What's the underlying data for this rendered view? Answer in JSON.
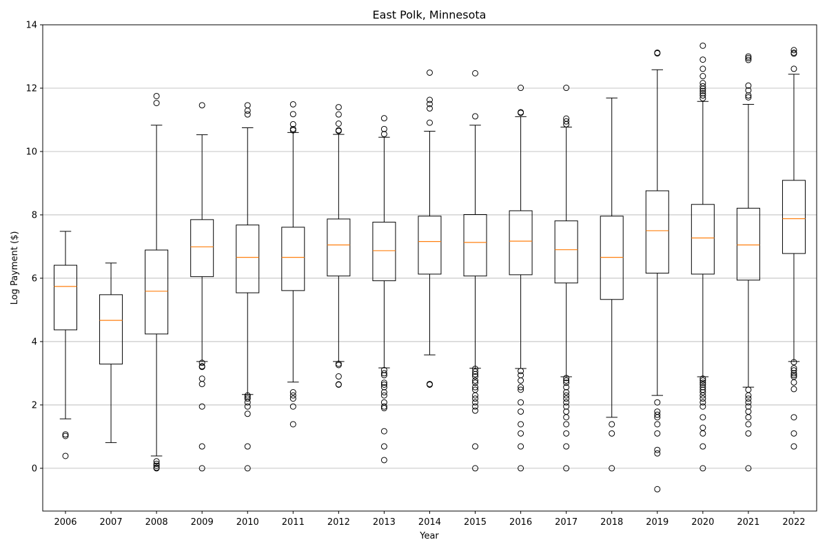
{
  "chart_data": {
    "type": "boxplot",
    "title": "East Polk, Minnesota",
    "xlabel": "Year",
    "ylabel": "Log Payment ($)",
    "ylim": [
      -1.35,
      14.0
    ],
    "yticks": [
      0,
      2,
      4,
      6,
      8,
      10,
      12,
      14
    ],
    "grid": "horizontal",
    "colors": {
      "box": "#000000",
      "median": "#ff7f0e",
      "grid": "#b0b0b0",
      "flier": "#000000"
    },
    "categories": [
      "2006",
      "2007",
      "2008",
      "2009",
      "2010",
      "2011",
      "2012",
      "2013",
      "2014",
      "2015",
      "2016",
      "2017",
      "2018",
      "2019",
      "2020",
      "2021",
      "2022"
    ],
    "boxes": [
      {
        "x": "2006",
        "whislo": 1.56,
        "q1": 4.37,
        "med": 5.74,
        "q3": 6.41,
        "whishi": 7.48,
        "fliers": [
          1.07,
          1.02,
          0.39
        ]
      },
      {
        "x": "2007",
        "whislo": 0.81,
        "q1": 3.29,
        "med": 4.67,
        "q3": 5.48,
        "whishi": 6.48,
        "fliers": []
      },
      {
        "x": "2008",
        "whislo": 0.39,
        "q1": 4.24,
        "med": 5.59,
        "q3": 6.89,
        "whishi": 10.83,
        "fliers": [
          11.75,
          11.53,
          0.22,
          0.14,
          0.08,
          0.02,
          0.0
        ]
      },
      {
        "x": "2009",
        "whislo": 3.37,
        "q1": 6.05,
        "med": 6.99,
        "q3": 7.85,
        "whishi": 10.53,
        "fliers": [
          11.46,
          3.33,
          3.22,
          3.2,
          2.83,
          2.66,
          1.95,
          0.69,
          0.0
        ]
      },
      {
        "x": "2010",
        "whislo": 2.33,
        "q1": 5.54,
        "med": 6.66,
        "q3": 7.68,
        "whishi": 10.75,
        "fliers": [
          11.46,
          11.29,
          11.17,
          2.3,
          2.25,
          2.2,
          2.08,
          1.95,
          1.72,
          0.69,
          0.0
        ]
      },
      {
        "x": "2011",
        "whislo": 2.72,
        "q1": 5.61,
        "med": 6.66,
        "q3": 7.61,
        "whishi": 10.6,
        "fliers": [
          11.49,
          11.18,
          10.86,
          10.71,
          10.67,
          2.4,
          2.3,
          2.2,
          1.95,
          1.39
        ]
      },
      {
        "x": "2012",
        "whislo": 3.37,
        "q1": 6.07,
        "med": 7.05,
        "q3": 7.87,
        "whishi": 10.54,
        "fliers": [
          11.4,
          11.17,
          10.88,
          10.67,
          10.65,
          3.3,
          3.26,
          2.9,
          2.65,
          2.64
        ]
      },
      {
        "x": "2013",
        "whislo": 3.17,
        "q1": 5.92,
        "med": 6.87,
        "q3": 7.77,
        "whishi": 10.45,
        "fliers": [
          11.05,
          10.71,
          10.55,
          3.1,
          3.0,
          2.94,
          2.7,
          2.64,
          2.56,
          2.4,
          2.3,
          2.08,
          1.95,
          1.9,
          1.17,
          0.69,
          0.26
        ]
      },
      {
        "x": "2014",
        "whislo": 3.58,
        "q1": 6.13,
        "med": 7.16,
        "q3": 7.96,
        "whishi": 10.64,
        "fliers": [
          12.49,
          11.63,
          11.5,
          11.36,
          10.91,
          2.66,
          2.64
        ]
      },
      {
        "x": "2015",
        "whislo": 3.16,
        "q1": 6.07,
        "med": 7.13,
        "q3": 8.01,
        "whishi": 10.83,
        "fliers": [
          12.47,
          11.11,
          3.14,
          3.05,
          2.97,
          2.9,
          2.77,
          2.7,
          2.56,
          2.48,
          2.3,
          2.2,
          2.08,
          1.95,
          1.82,
          0.69,
          0.0
        ]
      },
      {
        "x": "2016",
        "whislo": 3.15,
        "q1": 6.11,
        "med": 7.17,
        "q3": 8.13,
        "whishi": 11.1,
        "fliers": [
          12.01,
          11.24,
          11.22,
          3.07,
          2.94,
          2.77,
          2.56,
          2.48,
          2.08,
          1.79,
          1.39,
          1.1,
          0.69,
          0.0
        ]
      },
      {
        "x": "2017",
        "whislo": 2.89,
        "q1": 5.85,
        "med": 6.9,
        "q3": 7.81,
        "whishi": 10.77,
        "fliers": [
          12.01,
          11.04,
          10.95,
          10.86,
          2.85,
          2.77,
          2.7,
          2.56,
          2.4,
          2.3,
          2.2,
          2.08,
          1.95,
          1.79,
          1.61,
          1.39,
          1.1,
          0.69,
          0.0
        ]
      },
      {
        "x": "2018",
        "whislo": 1.61,
        "q1": 5.33,
        "med": 6.66,
        "q3": 7.96,
        "whishi": 11.69,
        "fliers": [
          1.39,
          1.1,
          0.0
        ]
      },
      {
        "x": "2019",
        "whislo": 2.3,
        "q1": 6.16,
        "med": 7.5,
        "q3": 8.76,
        "whishi": 12.58,
        "fliers": [
          13.12,
          13.1,
          2.08,
          1.79,
          1.69,
          1.61,
          1.39,
          1.1,
          0.58,
          0.47,
          -0.66
        ]
      },
      {
        "x": "2020",
        "whislo": 2.89,
        "q1": 6.13,
        "med": 7.27,
        "q3": 8.33,
        "whishi": 11.58,
        "fliers": [
          13.34,
          12.9,
          12.61,
          12.38,
          12.16,
          12.06,
          11.98,
          11.91,
          11.84,
          11.77,
          11.68,
          2.83,
          2.77,
          2.7,
          2.64,
          2.56,
          2.48,
          2.4,
          2.3,
          2.2,
          2.08,
          1.95,
          1.61,
          1.28,
          1.1,
          0.69,
          0.0
        ]
      },
      {
        "x": "2021",
        "whislo": 2.56,
        "q1": 5.94,
        "med": 7.05,
        "q3": 8.21,
        "whishi": 11.49,
        "fliers": [
          13.0,
          12.95,
          12.89,
          12.08,
          11.93,
          11.77,
          11.71,
          2.48,
          2.3,
          2.2,
          2.08,
          1.95,
          1.79,
          1.61,
          1.39,
          1.1,
          0.0
        ]
      },
      {
        "x": "2022",
        "whislo": 3.37,
        "q1": 6.78,
        "med": 7.88,
        "q3": 9.09,
        "whishi": 12.44,
        "fliers": [
          13.2,
          13.12,
          13.09,
          12.61,
          3.35,
          3.16,
          3.09,
          3.0,
          2.94,
          2.89,
          2.71,
          2.5,
          1.61,
          1.1,
          0.69
        ]
      }
    ]
  }
}
